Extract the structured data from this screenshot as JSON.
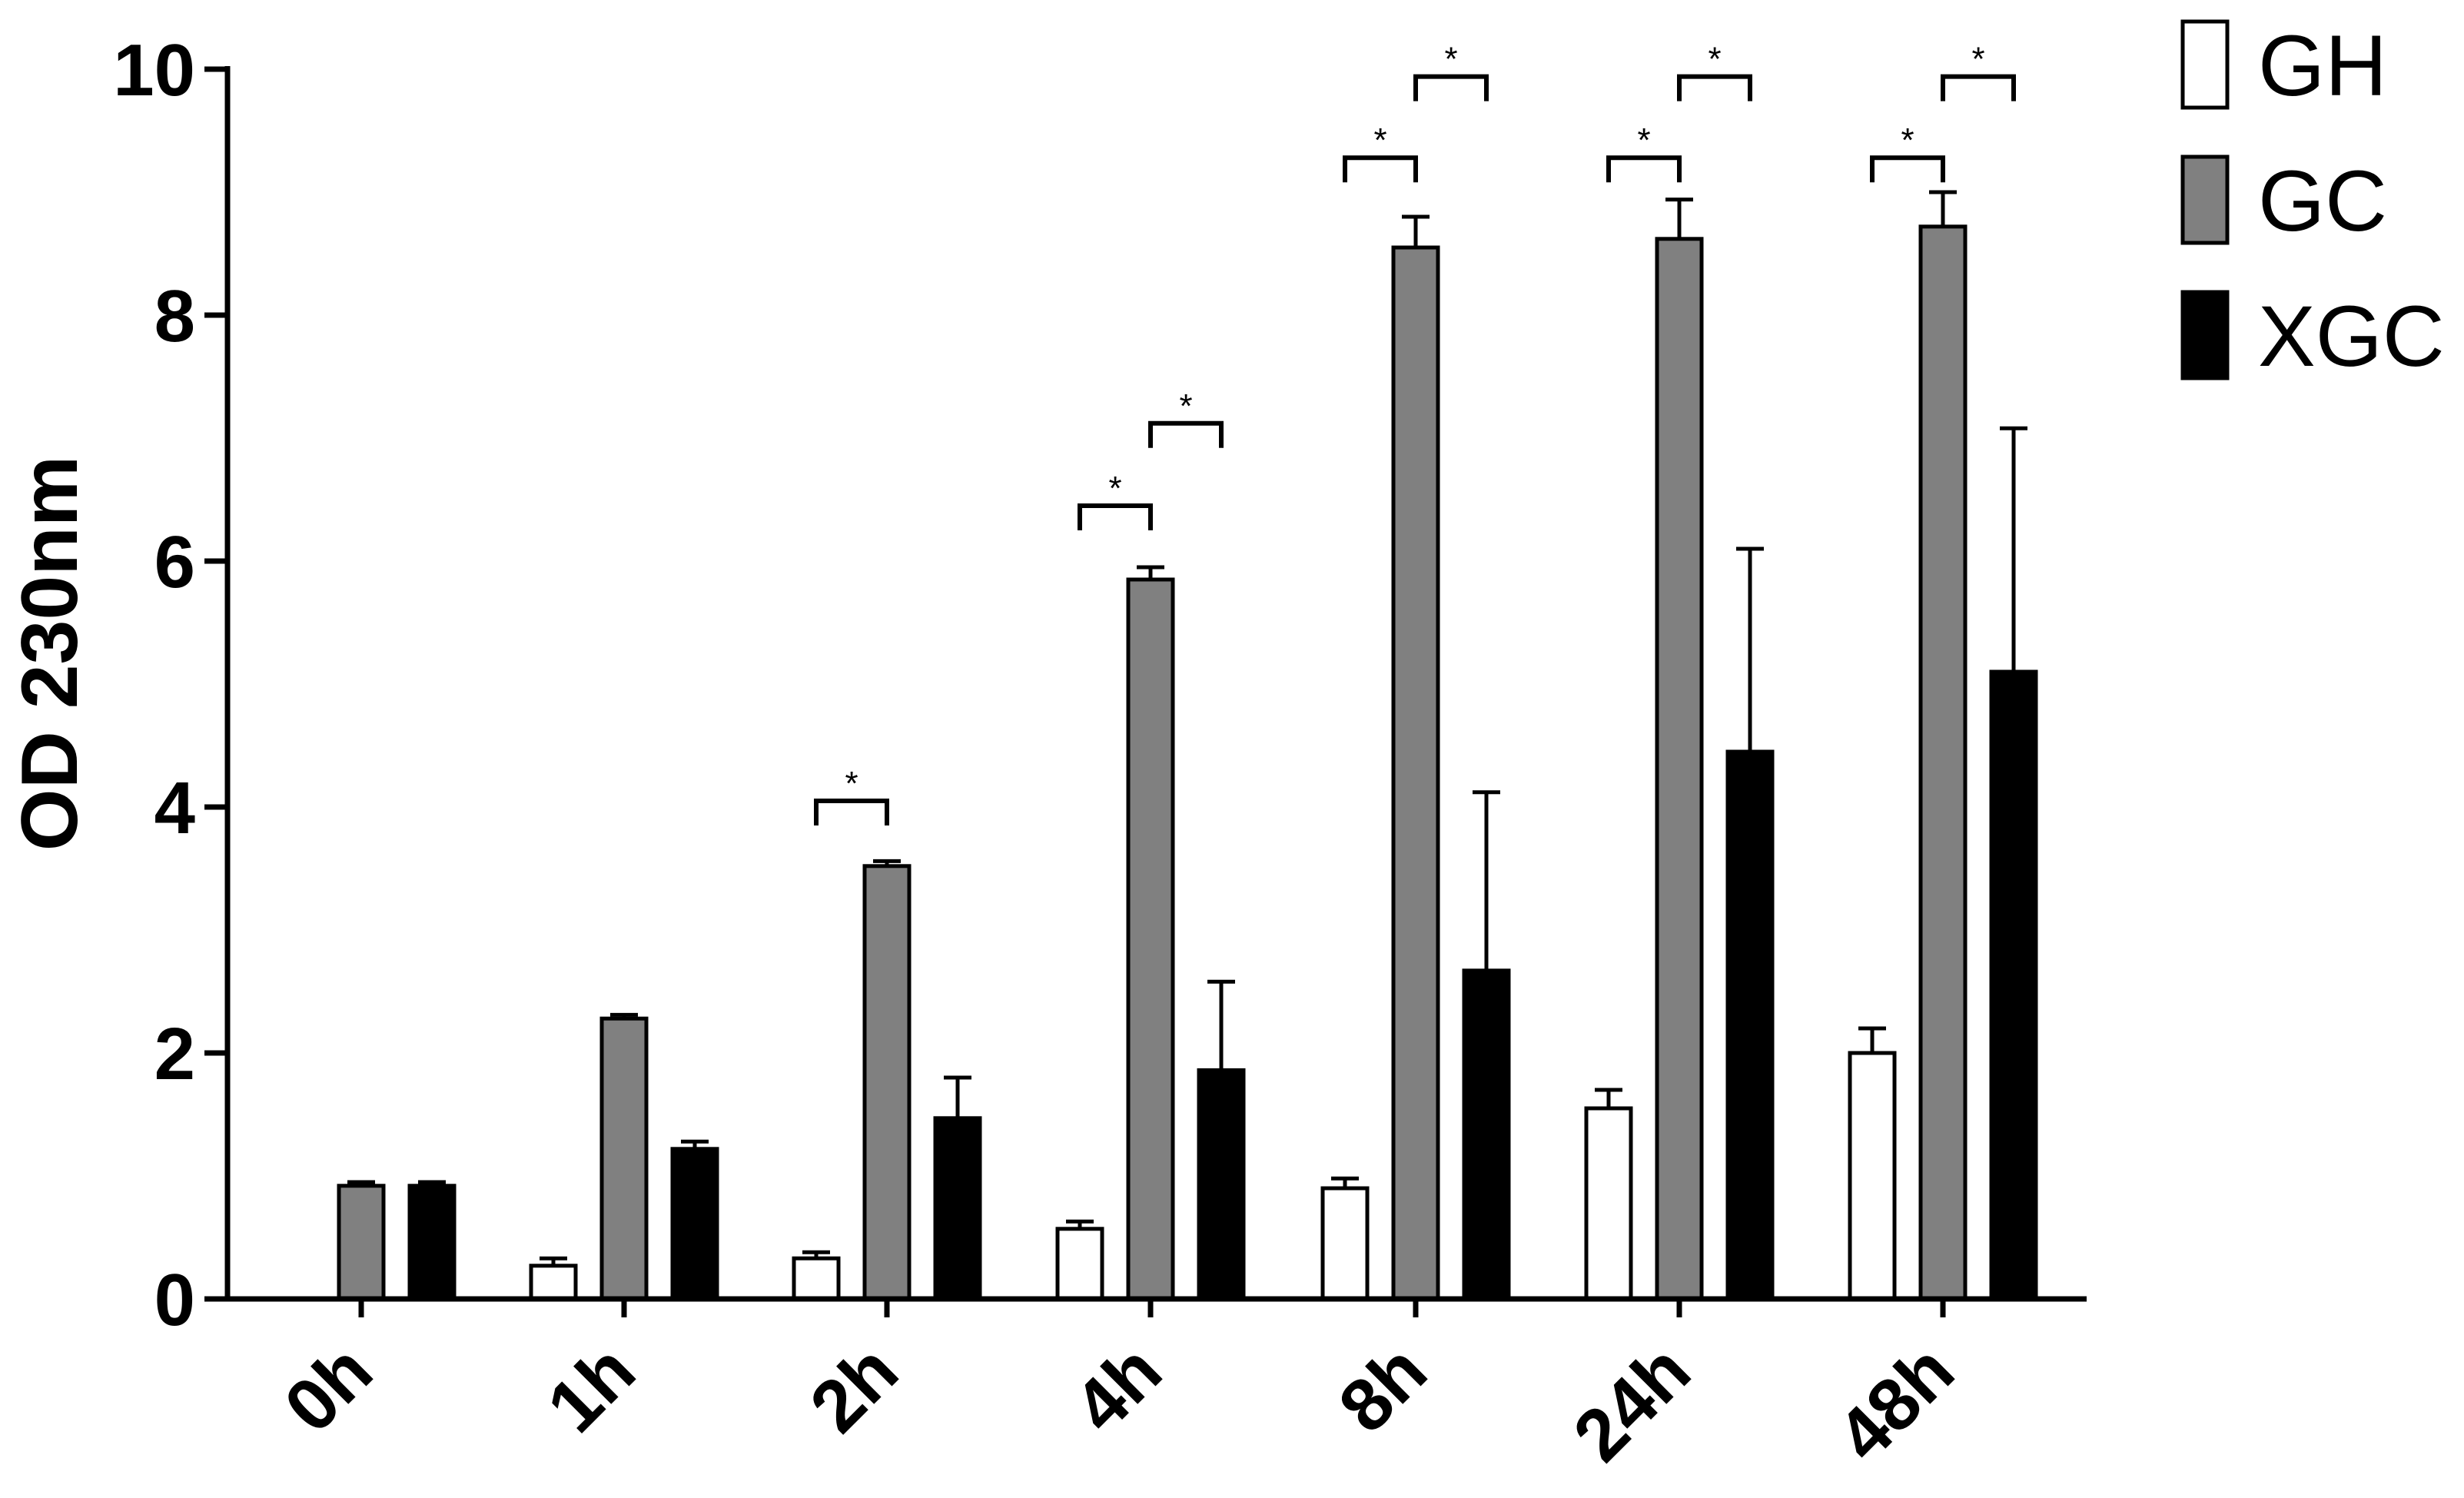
{
  "chart_data": {
    "type": "bar",
    "title": "",
    "xlabel": "",
    "ylabel": "OD 230nm",
    "ylim": [
      0,
      10
    ],
    "yticks": [
      0,
      2,
      4,
      6,
      8,
      10
    ],
    "categories": [
      "0h",
      "1h",
      "2h",
      "4h",
      "8h",
      "24h",
      "48h"
    ],
    "series": [
      {
        "name": "GH",
        "color": "#ffffff",
        "values": [
          0,
          0.27,
          0.33,
          0.57,
          0.9,
          1.55,
          2.0
        ],
        "errors": [
          0,
          0.06,
          0.05,
          0.06,
          0.08,
          0.15,
          0.2
        ]
      },
      {
        "name": "GC",
        "color": "#808080",
        "values": [
          0.92,
          2.28,
          3.52,
          5.85,
          8.55,
          8.62,
          8.72
        ],
        "errors": [
          0.03,
          0.03,
          0.04,
          0.1,
          0.25,
          0.32,
          0.28
        ]
      },
      {
        "name": "XGC",
        "color": "#000000",
        "values": [
          0.92,
          1.22,
          1.47,
          1.86,
          2.67,
          4.45,
          5.1
        ],
        "errors": [
          0.03,
          0.06,
          0.33,
          0.72,
          1.45,
          1.65,
          1.98
        ]
      }
    ],
    "significance": [
      {
        "category": "2h",
        "from": "GH",
        "to": "GC",
        "y": 4.05,
        "label": "*"
      },
      {
        "category": "4h",
        "from": "GH",
        "to": "GC",
        "y": 6.45,
        "label": "*"
      },
      {
        "category": "4h",
        "from": "GC",
        "to": "XGC",
        "y": 7.12,
        "label": "*"
      },
      {
        "category": "8h",
        "from": "GH",
        "to": "GC",
        "y": 9.28,
        "label": "*"
      },
      {
        "category": "8h",
        "from": "GC",
        "to": "XGC",
        "y": 9.94,
        "label": "*"
      },
      {
        "category": "24h",
        "from": "GH",
        "to": "GC",
        "y": 9.28,
        "label": "*"
      },
      {
        "category": "24h",
        "from": "GC",
        "to": "XGC",
        "y": 9.94,
        "label": "*"
      },
      {
        "category": "48h",
        "from": "GH",
        "to": "GC",
        "y": 9.28,
        "label": "*"
      },
      {
        "category": "48h",
        "from": "GC",
        "to": "XGC",
        "y": 9.94,
        "label": "*"
      }
    ],
    "legend": "right",
    "grid": false
  }
}
